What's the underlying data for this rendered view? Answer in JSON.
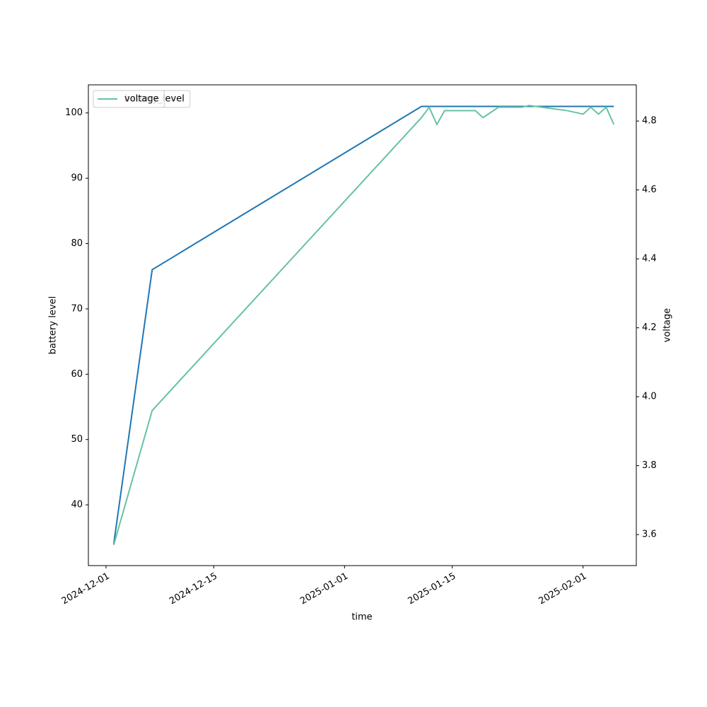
{
  "chart_data": {
    "type": "line",
    "xlabel": "time",
    "ylabel": "battery level",
    "y2label": "voltage",
    "xlim": [
      "2024-11-28T17:00",
      "2025-02-07T22:00"
    ],
    "xticks": [
      "2024-12-01",
      "2024-12-15",
      "2025-01-01",
      "2025-01-15",
      "2025-02-01"
    ],
    "ylim": [
      30.7,
      104.3
    ],
    "yticks": [
      40,
      50,
      60,
      70,
      80,
      90,
      100
    ],
    "y2lim": [
      3.51,
      4.905
    ],
    "y2ticks": [
      3.6,
      3.8,
      {
        "value": 4,
        "label": "4.0"
      },
      4.2,
      4.4,
      4.6,
      4.8
    ],
    "legend": "upper left",
    "series": [
      {
        "name": "battery_level",
        "color": "#1f77b4",
        "axis": "y",
        "x": [
          "2024-12-02",
          "2024-12-07",
          "2025-01-11",
          "2025-02-05"
        ],
        "values": [
          34,
          76,
          101,
          101
        ]
      },
      {
        "name": "voltage",
        "color": "#66c2a5",
        "axis": "y2",
        "x": [
          "2024-12-02",
          "2024-12-07",
          "2025-01-11",
          "2025-01-12",
          "2025-01-13",
          "2025-01-14",
          "2025-01-15",
          "2025-01-18",
          "2025-01-19",
          "2025-01-21",
          "2025-01-24",
          "2025-01-25",
          "2025-01-30",
          "2025-02-01",
          "2025-02-02",
          "2025-02-03",
          "2025-02-04",
          "2025-02-05"
        ],
        "values": [
          3.57,
          3.96,
          4.81,
          4.84,
          4.79,
          4.83,
          4.83,
          4.83,
          4.81,
          4.84,
          4.84,
          4.845,
          4.83,
          4.82,
          4.84,
          4.82,
          4.84,
          4.79
        ]
      }
    ]
  }
}
